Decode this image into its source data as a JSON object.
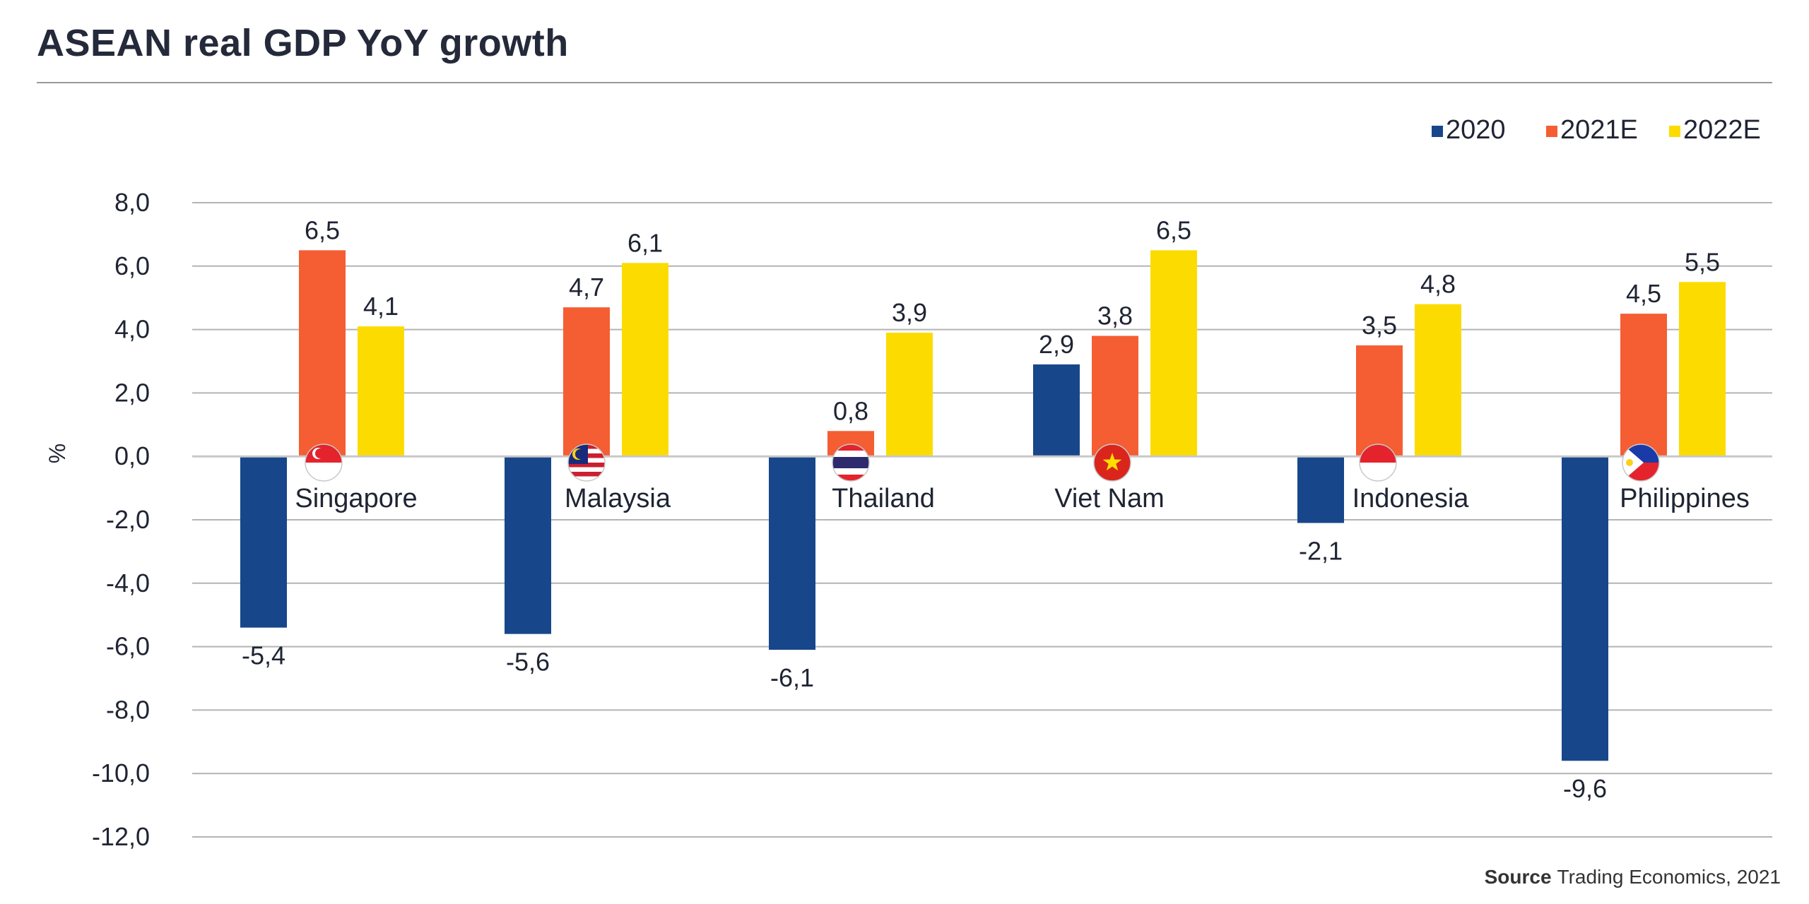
{
  "title": "ASEAN real GDP YoY growth",
  "source": {
    "label": "Source",
    "text": "Trading Economics, 2021"
  },
  "colors": {
    "2020": "#17478a",
    "2021E": "#f55d33",
    "2022E": "#fcdc00",
    "grid": "#b4b4b4",
    "zero_line": "#c8c8c8"
  },
  "flags": [
    {
      "country": "Singapore",
      "icon": "singapore-flag-icon"
    },
    {
      "country": "Malaysia",
      "icon": "malaysia-flag-icon"
    },
    {
      "country": "Thailand",
      "icon": "thailand-flag-icon"
    },
    {
      "country": "Viet Nam",
      "icon": "vietnam-flag-icon"
    },
    {
      "country": "Indonesia",
      "icon": "indonesia-flag-icon"
    },
    {
      "country": "Philippines",
      "icon": "philippines-flag-icon"
    }
  ],
  "chart_data": {
    "type": "bar",
    "title": "ASEAN real GDP YoY growth",
    "ylabel": "%",
    "xlabel": "",
    "categories": [
      "Singapore",
      "Malaysia",
      "Thailand",
      "Viet Nam",
      "Indonesia",
      "Philippines"
    ],
    "series": [
      {
        "name": "2020",
        "values": [
          -5.4,
          -5.6,
          -6.1,
          2.9,
          -2.1,
          -9.6
        ],
        "labels": [
          "-5,4",
          "-5,6",
          "-6,1",
          "2,9",
          "-2,1",
          "-9,6"
        ]
      },
      {
        "name": "2021E",
        "values": [
          6.5,
          4.7,
          0.8,
          3.8,
          3.5,
          4.5
        ],
        "labels": [
          "6,5",
          "4,7",
          "0,8",
          "3,8",
          "3,5",
          "4,5"
        ]
      },
      {
        "name": "2022E",
        "values": [
          4.1,
          6.1,
          3.9,
          6.5,
          4.8,
          5.5
        ],
        "labels": [
          "4,1",
          "6,1",
          "3,9",
          "6,5",
          "4,8",
          "5,5"
        ]
      }
    ],
    "ylim": [
      -12,
      8
    ],
    "yticks": [
      8,
      6,
      4,
      2,
      0,
      -2,
      -4,
      -6,
      -8,
      -10,
      -12
    ],
    "ytick_labels": [
      "8,0",
      "6,0",
      "4,0",
      "2,0",
      "0,0",
      "-2,0",
      "-4,0",
      "-6,0",
      "-8,0",
      "-10,0",
      "-12,0"
    ],
    "grid": true,
    "legend_position": "top-right"
  }
}
